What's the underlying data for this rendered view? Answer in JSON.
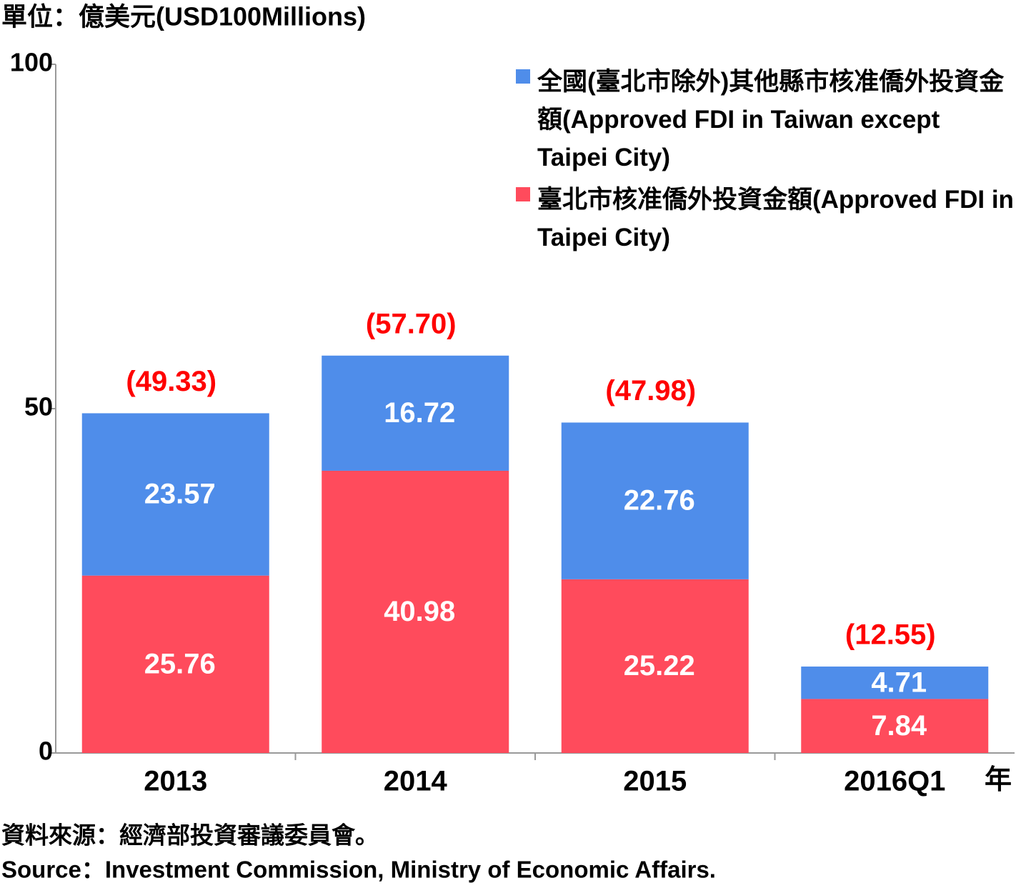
{
  "chart_data": {
    "type": "stacked_bar",
    "y_axis_label": "單位：億美元(USD100Millions)",
    "x_axis_label": "年",
    "categories": [
      "2013",
      "2014",
      "2015",
      "2016Q1"
    ],
    "series": [
      {
        "name": "臺北市核准僑外投資金額(Approved FDI in Taipei City)",
        "color": "#ff4b5c",
        "values": [
          25.76,
          40.98,
          25.22,
          7.84
        ]
      },
      {
        "name": "全國(臺北市除外)其他縣市核准僑外投資金額(Approved FDI in Taiwan except Taipei City)",
        "color": "#4f8dea",
        "values": [
          23.57,
          16.72,
          22.76,
          4.71
        ]
      }
    ],
    "totals": [
      49.33,
      57.7,
      47.98,
      12.55
    ],
    "total_value_labels": [
      "(49.33)",
      "(57.70)",
      "(47.98)",
      "(12.55)"
    ],
    "ylim": [
      0,
      100
    ],
    "yticks": [
      0,
      50,
      100
    ],
    "legend": "top-right",
    "source_zh": "資料來源：經濟部投資審議委員會。",
    "source_en": "Source：Investment Commission, Ministry of Economic Affairs."
  }
}
